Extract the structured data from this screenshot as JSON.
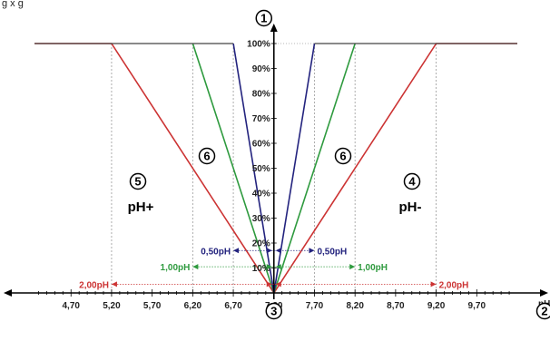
{
  "caption": "g             x            g",
  "chart_data": {
    "type": "line",
    "x_axis": {
      "ticks": [
        4.7,
        5.2,
        5.7,
        6.2,
        6.7,
        7.2,
        7.7,
        8.2,
        8.7,
        9.2,
        9.7
      ],
      "tick_labels": [
        "4,70",
        "5,20",
        "5,70",
        "6,20",
        "6,70",
        "7,20",
        "7,70",
        "8,20",
        "8,70",
        "9,20",
        "9,70"
      ],
      "range": [
        4.25,
        10.2
      ],
      "unit_label": "pH"
    },
    "y_axis": {
      "ticks": [
        10,
        20,
        30,
        40,
        50,
        60,
        70,
        80,
        90,
        100
      ],
      "tick_labels": [
        "10%",
        "20%",
        "30%",
        "40%",
        "50%",
        "60%",
        "70%",
        "80%",
        "90%",
        "100%"
      ],
      "range": [
        0,
        100
      ]
    },
    "series": [
      {
        "color": "#cc3333",
        "x": [
          4.25,
          5.2,
          7.2,
          9.2,
          10.2
        ],
        "y": [
          100,
          100,
          0,
          100,
          100
        ]
      },
      {
        "color": "#2e9a3e",
        "x": [
          6.2,
          7.2,
          8.2
        ],
        "y": [
          100,
          0,
          100
        ]
      },
      {
        "color": "#23237e",
        "x": [
          6.7,
          7.2,
          7.7
        ],
        "y": [
          100,
          0,
          100
        ]
      }
    ],
    "bands": [
      {
        "label": "2,00pH",
        "from": 5.2,
        "to": 9.2,
        "y": 3.5,
        "color": "#cc3333"
      },
      {
        "label": "1,00pH",
        "from": 6.2,
        "to": 8.2,
        "y": 10.5,
        "color": "#2e9a3e"
      },
      {
        "label": "0,50pH",
        "from": 6.7,
        "to": 7.7,
        "y": 17,
        "color": "#23237e"
      }
    ],
    "annotations": [
      {
        "id": "1",
        "text": "1"
      },
      {
        "id": "2",
        "text": "2"
      },
      {
        "id": "3",
        "text": "3"
      },
      {
        "id": "4",
        "text": "4"
      },
      {
        "id": "5",
        "text": "5"
      },
      {
        "id": "6a",
        "text": "6"
      },
      {
        "id": "6b",
        "text": "6"
      }
    ],
    "region_labels": {
      "left": "pH+",
      "right": "pH-"
    }
  }
}
